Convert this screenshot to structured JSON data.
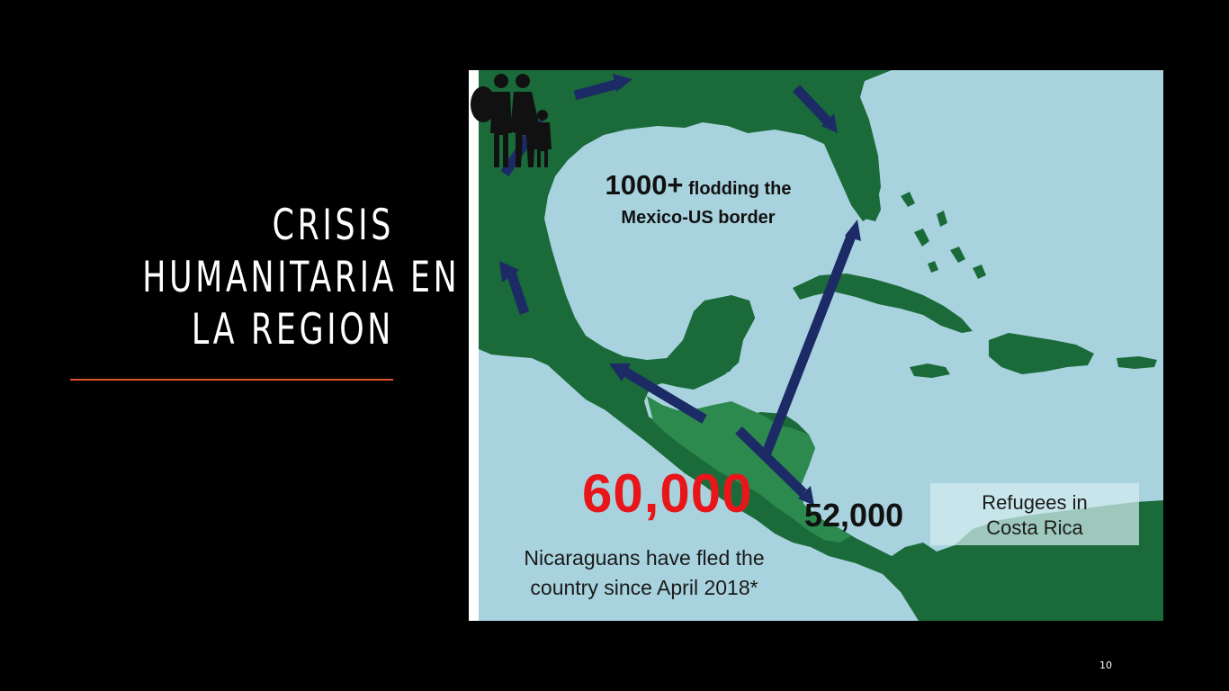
{
  "slide": {
    "title_lines": [
      "CRISIS",
      "HUMANITARIA EN",
      "LA REGION"
    ],
    "page_number": "10"
  },
  "map": {
    "flooding": {
      "count": "1000+",
      "line1_rest": "flodding the",
      "line2": "Mexico-US border"
    },
    "fled_count": "60,000",
    "fled_caption_line1": "Nicaraguans have fled the",
    "fled_caption_line2": "country since April 2018*",
    "refugees_count": "52,000",
    "refugees_label_line1": "Refugees in",
    "refugees_label_line2": "Costa Rica"
  },
  "colors": {
    "background": "#000000",
    "accent_rule": "#e0522a",
    "ocean": "#a8d3de",
    "land": "#1b6b3a",
    "central_america": "#2d8a4e",
    "arrows": "#1c2a66",
    "highlight_number": "#e8161b"
  },
  "icons": [
    "family-icon",
    "migration-arrow-icon"
  ]
}
